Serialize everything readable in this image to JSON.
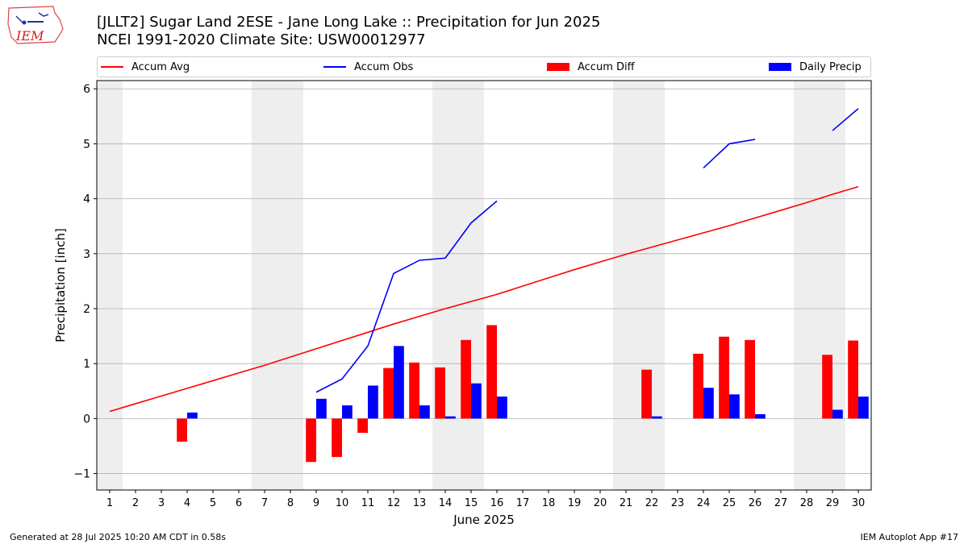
{
  "header": {
    "title_line1": "[JLLT2] Sugar Land 2ESE - Jane Long Lake :: Precipitation for Jun 2025",
    "title_line2": "NCEI 1991-2020 Climate Site: USW00012977",
    "logo_text": "IEM"
  },
  "legend": {
    "items": [
      {
        "label": "Accum Avg",
        "kind": "line",
        "color": "#ff0000"
      },
      {
        "label": "Accum Obs",
        "kind": "line",
        "color": "#0000ff"
      },
      {
        "label": "Accum Diff",
        "kind": "box",
        "color": "#ff0000"
      },
      {
        "label": "Daily Precip",
        "kind": "box",
        "color": "#0000ff"
      }
    ]
  },
  "footer": {
    "left": "Generated at 28 Jul 2025 10:20 AM CDT in 0.58s",
    "right": "IEM Autoplot App #17"
  },
  "chart_data": {
    "type": "bar",
    "xlabel": "June 2025",
    "ylabel": "Precipitation [inch]",
    "x": [
      1,
      2,
      3,
      4,
      5,
      6,
      7,
      8,
      9,
      10,
      11,
      12,
      13,
      14,
      15,
      16,
      17,
      18,
      19,
      20,
      21,
      22,
      23,
      24,
      25,
      26,
      27,
      28,
      29,
      30
    ],
    "xlim": [
      0.5,
      30.5
    ],
    "ylim": [
      -1.3,
      6.15
    ],
    "yticks": [
      -1,
      0,
      1,
      2,
      3,
      4,
      5,
      6
    ],
    "grid": true,
    "weekend_shading": [
      [
        0.5,
        1.5
      ],
      [
        6.5,
        8.5
      ],
      [
        13.5,
        15.5
      ],
      [
        20.5,
        22.5
      ],
      [
        27.5,
        29.5
      ]
    ],
    "colors": {
      "avg": "#ff0000",
      "obs": "#0000ff",
      "diff": "#ff0000",
      "daily": "#0000ff",
      "shade": "#eeeeee",
      "grid": "#b0b0b0"
    },
    "series": [
      {
        "name": "Accum Avg",
        "kind": "line",
        "values": [
          0.13,
          0.27,
          0.41,
          0.55,
          0.69,
          0.83,
          0.97,
          1.12,
          1.27,
          1.42,
          1.57,
          1.72,
          1.86,
          2.0,
          2.13,
          2.26,
          2.41,
          2.56,
          2.71,
          2.85,
          2.99,
          3.12,
          3.25,
          3.38,
          3.51,
          3.65,
          3.79,
          3.93,
          4.08,
          4.22
        ]
      },
      {
        "name": "Accum Obs",
        "kind": "line",
        "values": [
          null,
          null,
          null,
          null,
          null,
          null,
          null,
          null,
          0.48,
          0.72,
          1.32,
          2.64,
          2.88,
          2.92,
          3.56,
          3.96,
          null,
          null,
          null,
          null,
          null,
          null,
          null,
          4.56,
          5.0,
          5.08,
          null,
          null,
          5.24,
          5.64
        ]
      },
      {
        "name": "Accum Diff",
        "kind": "bar",
        "values": [
          null,
          null,
          null,
          -0.42,
          null,
          null,
          null,
          null,
          -0.79,
          -0.7,
          -0.26,
          0.92,
          1.02,
          0.93,
          1.43,
          1.7,
          null,
          null,
          null,
          null,
          null,
          0.89,
          null,
          1.18,
          1.49,
          1.43,
          null,
          null,
          1.16,
          1.42
        ]
      },
      {
        "name": "Daily Precip",
        "kind": "bar",
        "values": [
          null,
          null,
          null,
          0.11,
          null,
          null,
          null,
          null,
          0.36,
          0.24,
          0.6,
          1.32,
          0.24,
          0.04,
          0.64,
          0.4,
          null,
          null,
          null,
          null,
          null,
          0.04,
          null,
          0.56,
          0.44,
          0.08,
          null,
          null,
          0.16,
          0.4
        ]
      }
    ]
  }
}
